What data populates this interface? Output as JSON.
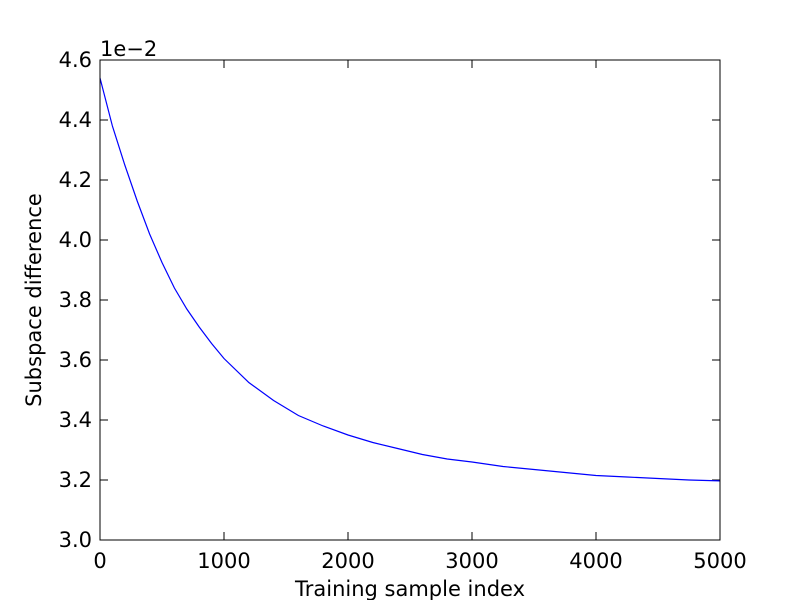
{
  "chart_data": {
    "type": "line",
    "title": "",
    "xlabel": "Training sample index",
    "ylabel": "Subspace difference",
    "y_offset_label": "1e−2",
    "xlim": [
      0,
      5000
    ],
    "ylim": [
      3.0,
      4.6
    ],
    "xticks": [
      "0",
      "1000",
      "2000",
      "3000",
      "4000",
      "5000"
    ],
    "yticks": [
      "3.0",
      "3.2",
      "3.4",
      "3.6",
      "3.8",
      "4.0",
      "4.2",
      "4.4",
      "4.6"
    ],
    "grid": false,
    "legend": "none",
    "line_color": "#0000ff",
    "series": [
      {
        "x": [
          0,
          100,
          200,
          300,
          400,
          500,
          600,
          700,
          800,
          900,
          1000,
          1200,
          1400,
          1600,
          1800,
          2000,
          2200,
          2400,
          2600,
          2800,
          3000,
          3250,
          3500,
          3750,
          4000,
          4250,
          4500,
          4750,
          5000
        ],
        "y": [
          4.54,
          4.38,
          4.25,
          4.13,
          4.02,
          3.925,
          3.84,
          3.77,
          3.71,
          3.655,
          3.605,
          3.525,
          3.465,
          3.415,
          3.38,
          3.35,
          3.325,
          3.305,
          3.285,
          3.27,
          3.26,
          3.245,
          3.235,
          3.225,
          3.215,
          3.21,
          3.205,
          3.2,
          3.197
        ]
      }
    ]
  }
}
